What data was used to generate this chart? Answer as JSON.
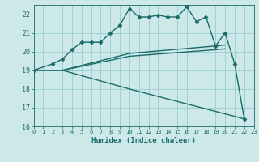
{
  "xlabel": "Humidex (Indice chaleur)",
  "xlim": [
    0,
    23
  ],
  "ylim": [
    16,
    22.5
  ],
  "yticks": [
    16,
    17,
    18,
    19,
    20,
    21,
    22
  ],
  "xticks": [
    0,
    1,
    2,
    3,
    4,
    5,
    6,
    7,
    8,
    9,
    10,
    11,
    12,
    13,
    14,
    15,
    16,
    17,
    18,
    19,
    20,
    21,
    22,
    23
  ],
  "bg_color": "#cce8e8",
  "grid_color": "#99cccc",
  "line_color": "#1a6b6b",
  "lines": [
    {
      "x": [
        0,
        2,
        3,
        4,
        5,
        6,
        7,
        8,
        9,
        10,
        11,
        12,
        13,
        14,
        15,
        16,
        17,
        18,
        19,
        20,
        21,
        22
      ],
      "y": [
        19.0,
        19.35,
        19.6,
        20.1,
        20.5,
        20.5,
        20.5,
        21.0,
        21.4,
        22.3,
        21.85,
        21.85,
        21.95,
        21.85,
        21.85,
        22.4,
        21.6,
        21.85,
        20.3,
        21.0,
        19.35,
        16.4
      ],
      "marker": "D",
      "markersize": 2.5,
      "linewidth": 1.0
    },
    {
      "x": [
        0,
        3,
        10,
        19,
        20
      ],
      "y": [
        19.0,
        19.0,
        19.9,
        20.3,
        20.35
      ],
      "marker": null,
      "markersize": 0,
      "linewidth": 1.0
    },
    {
      "x": [
        0,
        3,
        10,
        19,
        20
      ],
      "y": [
        19.0,
        19.0,
        19.75,
        20.1,
        20.15
      ],
      "marker": null,
      "markersize": 0,
      "linewidth": 1.0
    },
    {
      "x": [
        0,
        3,
        10,
        19,
        22
      ],
      "y": [
        19.0,
        19.0,
        18.0,
        16.8,
        16.4
      ],
      "marker": null,
      "markersize": 0,
      "linewidth": 1.0
    }
  ]
}
